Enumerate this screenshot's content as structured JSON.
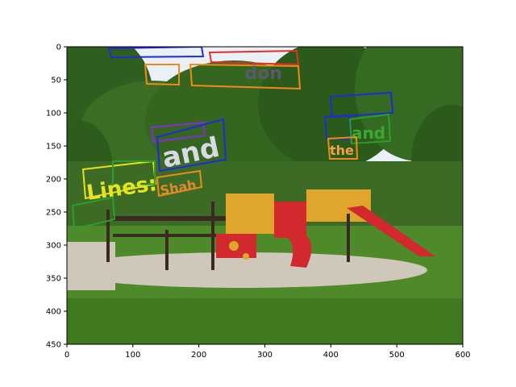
{
  "figure": {
    "background": "#ffffff",
    "x_ticks": [
      "0",
      "100",
      "200",
      "300",
      "400",
      "500",
      "600"
    ],
    "y_ticks": [
      "0",
      "50",
      "100",
      "150",
      "200",
      "250",
      "300",
      "350",
      "400",
      "450"
    ],
    "x_range": [
      0,
      600
    ],
    "y_range": [
      0,
      450
    ]
  },
  "scene": {
    "sky_color": "#e9f1f6",
    "tree_color": "#2f5f1f",
    "grass_color": "#4f8a2a",
    "path_color": "#cfc7b9",
    "playground_colors": [
      "#d1292d",
      "#e0a62b",
      "#3a2a1f"
    ]
  },
  "text_overlays": [
    {
      "text": "Lines:",
      "color": "#e8e224"
    },
    {
      "text": "and",
      "color": "#d9d9e6"
    },
    {
      "text": "Shah",
      "color": "#e08a2a"
    },
    {
      "text": "and",
      "color": "#3aa832"
    },
    {
      "text": "the",
      "color": "#f0a050"
    }
  ],
  "annotation_colors": {
    "blue": "#1f2bd6",
    "red": "#e0302a",
    "orange": "#f08a18",
    "purple": "#8a2bd6",
    "green": "#2aa02a",
    "yellow": "#e6e21a"
  }
}
